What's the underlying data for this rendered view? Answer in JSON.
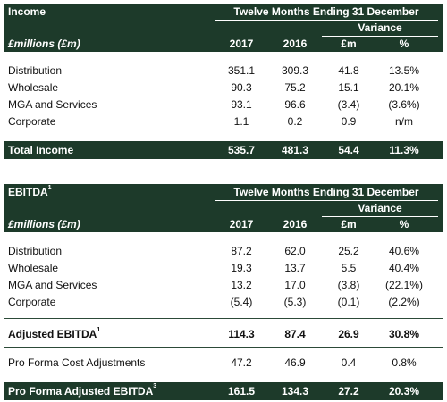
{
  "income": {
    "title": "Income",
    "period": "Twelve Months Ending 31 December",
    "variance": "Variance",
    "units_label": "£millions (£m)",
    "columns": [
      "2017",
      "2016",
      "£m",
      "%"
    ],
    "rows": [
      {
        "label": "Distribution",
        "v2017": "351.1",
        "v2016": "309.3",
        "vm": "41.8",
        "vp": "13.5%"
      },
      {
        "label": "Wholesale",
        "v2017": "90.3",
        "v2016": "75.2",
        "vm": "15.1",
        "vp": "20.1%"
      },
      {
        "label": "MGA and Services",
        "v2017": "93.1",
        "v2016": "96.6",
        "vm": "(3.4)",
        "vp": "(3.6%)"
      },
      {
        "label": "Corporate",
        "v2017": "1.1",
        "v2016": "0.2",
        "vm": "0.9",
        "vp": "n/m"
      }
    ],
    "total": {
      "label": "Total Income",
      "v2017": "535.7",
      "v2016": "481.3",
      "vm": "54.4",
      "vp": "11.3%"
    }
  },
  "ebitda": {
    "title": "EBITDA",
    "title_sup": "1",
    "period": "Twelve Months Ending 31 December",
    "variance": "Variance",
    "units_label": "£millions (£m)",
    "columns": [
      "2017",
      "2016",
      "£m",
      "%"
    ],
    "rows": [
      {
        "label": "Distribution",
        "v2017": "87.2",
        "v2016": "62.0",
        "vm": "25.2",
        "vp": "40.6%"
      },
      {
        "label": "Wholesale",
        "v2017": "19.3",
        "v2016": "13.7",
        "vm": "5.5",
        "vp": "40.4%"
      },
      {
        "label": "MGA and Services",
        "v2017": "13.2",
        "v2016": "17.0",
        "vm": "(3.8)",
        "vp": "(22.1%)"
      },
      {
        "label": "Corporate",
        "v2017": "(5.4)",
        "v2016": "(5.3)",
        "vm": "(0.1)",
        "vp": "(2.2%)"
      }
    ],
    "adjusted": {
      "label": "Adjusted EBITDA",
      "sup": "1",
      "v2017": "114.3",
      "v2016": "87.4",
      "vm": "26.9",
      "vp": "30.8%"
    },
    "pro_forma_cost": {
      "label": "Pro Forma Cost Adjustments",
      "v2017": "47.2",
      "v2016": "46.9",
      "vm": "0.4",
      "vp": "0.8%"
    },
    "pro_forma_total": {
      "label": "Pro Forma Adjusted EBITDA",
      "sup": "3",
      "v2017": "161.5",
      "v2016": "134.3",
      "vm": "27.2",
      "vp": "20.3%"
    }
  },
  "colors": {
    "header_bg": "#1d3a2a",
    "header_text": "#ffffff"
  }
}
